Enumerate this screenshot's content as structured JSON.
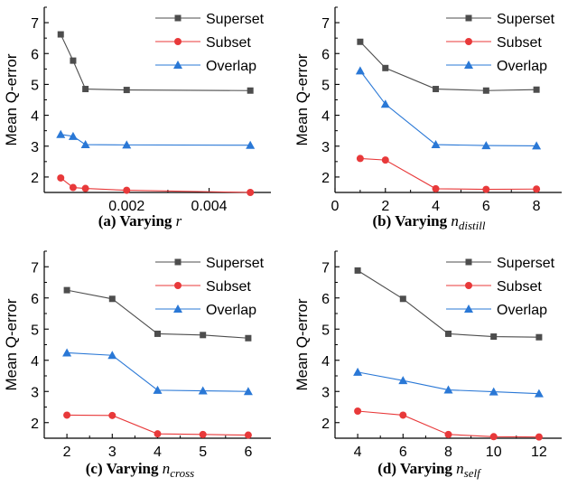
{
  "colors": {
    "Superset": "#4d4d4d",
    "Subset": "#e8393a",
    "Overlap": "#2a78d6",
    "axis": "#000000"
  },
  "chart_data": [
    {
      "type": "line",
      "caption": {
        "bold": "(a) Varying ",
        "var": "r",
        "sub": ""
      },
      "ylabel": "Mean Q-error",
      "ylim": [
        1.5,
        7.5
      ],
      "yticks": [
        2,
        3,
        4,
        5,
        6,
        7
      ],
      "xlim": [
        0.0,
        0.0055
      ],
      "xticks": [
        0.002,
        0.004
      ],
      "xtick_labels": [
        "0.002",
        "0.004"
      ],
      "series": [
        {
          "name": "Superset",
          "marker": "square",
          "x": [
            0.0004,
            0.0007,
            0.001,
            0.002,
            0.005
          ],
          "values": [
            6.62,
            5.77,
            4.85,
            4.82,
            4.8
          ]
        },
        {
          "name": "Subset",
          "marker": "circle",
          "x": [
            0.0004,
            0.0007,
            0.001,
            0.002,
            0.005
          ],
          "values": [
            1.97,
            1.66,
            1.63,
            1.57,
            1.5
          ]
        },
        {
          "name": "Overlap",
          "marker": "triangle",
          "x": [
            0.0004,
            0.0007,
            0.001,
            0.002,
            0.005
          ],
          "values": [
            3.38,
            3.32,
            3.05,
            3.04,
            3.03
          ]
        }
      ]
    },
    {
      "type": "line",
      "caption": {
        "bold": "(b) Varying ",
        "var": "n",
        "sub": "distill"
      },
      "ylabel": "Mean Q-error",
      "ylim": [
        1.5,
        7.5
      ],
      "yticks": [
        2,
        3,
        4,
        5,
        6,
        7
      ],
      "xlim": [
        0,
        9
      ],
      "xticks": [
        0,
        2,
        4,
        6,
        8
      ],
      "xtick_labels": [
        "0",
        "2",
        "4",
        "6",
        "8"
      ],
      "series": [
        {
          "name": "Superset",
          "marker": "square",
          "x": [
            1,
            2,
            4,
            6,
            8
          ],
          "values": [
            6.38,
            5.53,
            4.85,
            4.8,
            4.83
          ]
        },
        {
          "name": "Subset",
          "marker": "circle",
          "x": [
            1,
            2,
            4,
            6,
            8
          ],
          "values": [
            2.6,
            2.55,
            1.62,
            1.6,
            1.61
          ]
        },
        {
          "name": "Overlap",
          "marker": "triangle",
          "x": [
            1,
            2,
            4,
            6,
            8
          ],
          "values": [
            5.44,
            4.36,
            3.05,
            3.02,
            3.01
          ]
        }
      ]
    },
    {
      "type": "line",
      "caption": {
        "bold": "(c) Varying ",
        "var": "n",
        "sub": "cross"
      },
      "ylabel": "Mean Q-error",
      "ylim": [
        1.5,
        7.5
      ],
      "yticks": [
        2,
        3,
        4,
        5,
        6,
        7
      ],
      "xlim": [
        1.5,
        6.5
      ],
      "xticks": [
        2,
        3,
        4,
        5,
        6
      ],
      "xtick_labels": [
        "2",
        "3",
        "4",
        "5",
        "6"
      ],
      "series": [
        {
          "name": "Superset",
          "marker": "square",
          "x": [
            2,
            3,
            4,
            5,
            6
          ],
          "values": [
            6.25,
            5.97,
            4.85,
            4.81,
            4.71
          ]
        },
        {
          "name": "Subset",
          "marker": "circle",
          "x": [
            2,
            3,
            4,
            5,
            6
          ],
          "values": [
            2.24,
            2.23,
            1.64,
            1.62,
            1.6
          ]
        },
        {
          "name": "Overlap",
          "marker": "triangle",
          "x": [
            2,
            3,
            4,
            5,
            6
          ],
          "values": [
            4.24,
            4.16,
            3.04,
            3.02,
            3.0
          ]
        }
      ]
    },
    {
      "type": "line",
      "caption": {
        "bold": "(d) Varying ",
        "var": "n",
        "sub": "self"
      },
      "ylabel": "Mean Q-error",
      "ylim": [
        1.5,
        7.5
      ],
      "yticks": [
        2,
        3,
        4,
        5,
        6,
        7
      ],
      "xlim": [
        3,
        13
      ],
      "xticks": [
        4,
        6,
        8,
        10,
        12
      ],
      "xtick_labels": [
        "4",
        "6",
        "8",
        "10",
        "12"
      ],
      "series": [
        {
          "name": "Superset",
          "marker": "square",
          "x": [
            4,
            6,
            8,
            10,
            12
          ],
          "values": [
            6.88,
            5.97,
            4.85,
            4.76,
            4.74
          ]
        },
        {
          "name": "Subset",
          "marker": "circle",
          "x": [
            4,
            6,
            8,
            10,
            12
          ],
          "values": [
            2.37,
            2.24,
            1.62,
            1.55,
            1.54
          ]
        },
        {
          "name": "Overlap",
          "marker": "triangle",
          "x": [
            4,
            6,
            8,
            10,
            12
          ],
          "values": [
            3.62,
            3.35,
            3.05,
            2.99,
            2.93
          ]
        }
      ]
    }
  ]
}
